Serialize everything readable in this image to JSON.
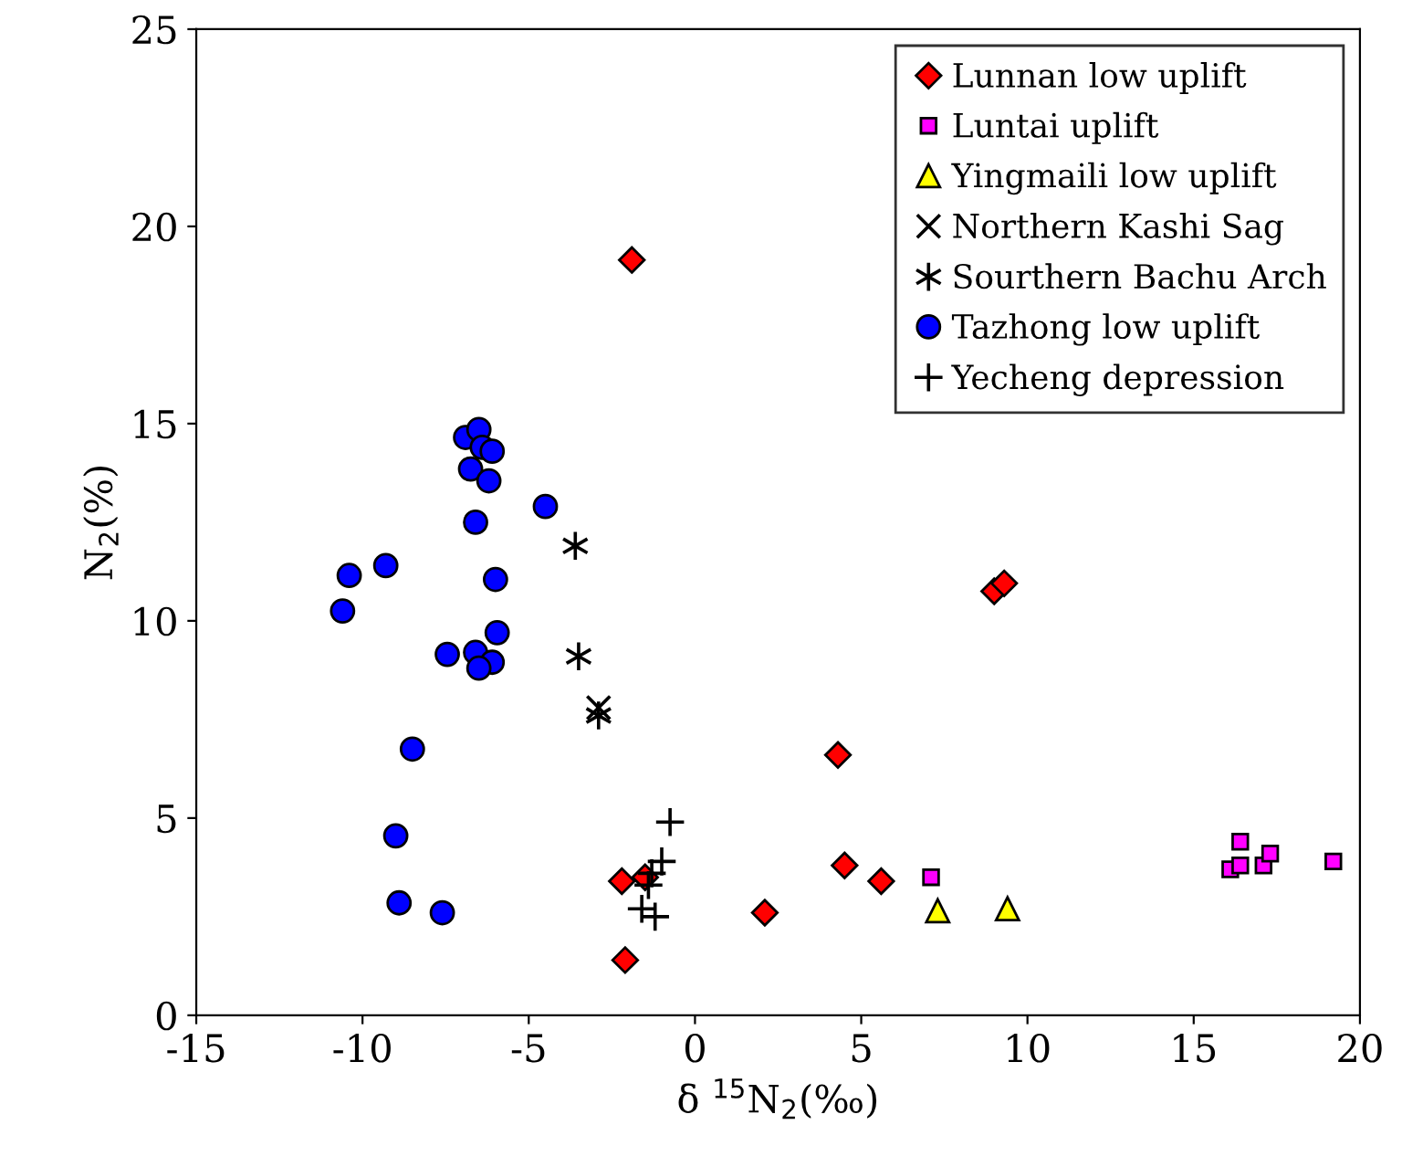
{
  "chart_data": {
    "type": "scatter",
    "xlabel": "δ $^{15}$N$_{2}$(‰)",
    "ylabel": "N$_{2}$(%)",
    "xlim": [
      -15,
      20
    ],
    "ylim": [
      0,
      25
    ],
    "xticks": [
      -15,
      -10,
      -5,
      0,
      5,
      10,
      15,
      20
    ],
    "yticks": [
      0,
      5,
      10,
      15,
      20,
      25
    ],
    "grid": false,
    "legend": "top right",
    "series": [
      {
        "name": "Lunnan low uplift",
        "color": "#ff0000",
        "marker": "diamond",
        "x": [
          -1.9,
          9.0,
          9.3,
          4.3,
          4.5,
          5.6,
          2.1,
          -2.2,
          -1.5,
          -2.1
        ],
        "values": [
          19.15,
          10.75,
          10.95,
          6.6,
          3.8,
          3.4,
          2.6,
          3.4,
          3.5,
          1.4
        ]
      },
      {
        "name": "Luntai uplift",
        "color": "#ff00ff",
        "marker": "square",
        "x": [
          7.1,
          16.4,
          16.1,
          16.4,
          17.1,
          17.3,
          19.2
        ],
        "values": [
          3.5,
          4.4,
          3.7,
          3.8,
          3.8,
          4.1,
          3.9
        ]
      },
      {
        "name": "Yingmaili low uplift",
        "color": "#ffff00",
        "marker": "triangle",
        "x": [
          7.3,
          9.4
        ],
        "values": [
          2.65,
          2.7
        ]
      },
      {
        "name": "Northern Kashi Sag",
        "color": "#000000",
        "x": [
          -2.9
        ],
        "values": [
          7.8
        ]
      },
      {
        "name": "Sourthern Bachu Arch",
        "color": "#000000",
        "x": [
          -3.6,
          -3.5,
          -2.9
        ],
        "values": [
          11.9,
          9.1,
          7.6
        ]
      },
      {
        "name": "Tazhong low uplift",
        "color": "#0000ff",
        "marker": "circle",
        "x": [
          -6.9,
          -6.5,
          -6.4,
          -6.1,
          -6.75,
          -6.2,
          -4.5,
          -6.6,
          -10.4,
          -9.3,
          -6.0,
          -10.6,
          -5.95,
          -7.45,
          -6.6,
          -6.1,
          -6.5,
          -8.5,
          -9.0,
          -8.9,
          -7.6
        ],
        "values": [
          14.65,
          14.85,
          14.4,
          14.3,
          13.85,
          13.55,
          12.9,
          12.5,
          11.15,
          11.4,
          11.05,
          10.25,
          9.7,
          9.15,
          9.2,
          8.95,
          8.8,
          6.75,
          4.55,
          2.85,
          2.6
        ]
      },
      {
        "name": "Yecheng depression",
        "color": "#000000",
        "marker": "plus",
        "x": [
          -0.75,
          -1.0,
          -1.3,
          -1.4,
          -1.6,
          -1.2
        ],
        "values": [
          4.9,
          3.9,
          3.6,
          3.3,
          2.7,
          2.5
        ]
      }
    ]
  }
}
